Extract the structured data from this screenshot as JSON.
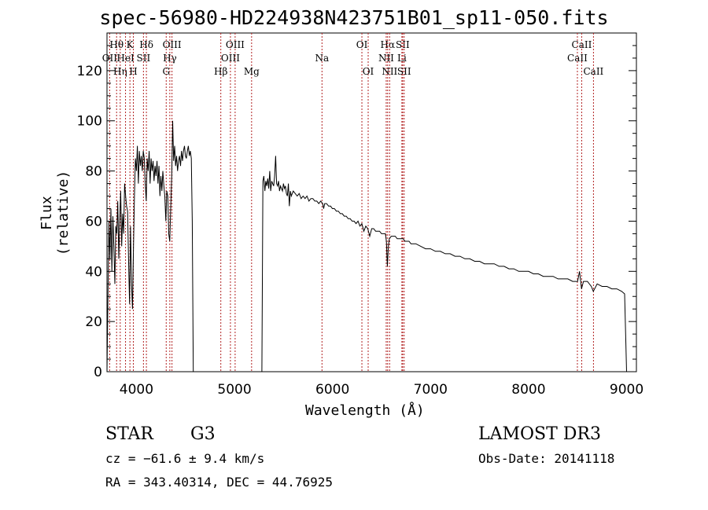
{
  "title": "spec-56980-HD224938N423751B01_sp11-050.fits",
  "info": {
    "class": "STAR",
    "subclass": "G3",
    "survey": "LAMOST DR3",
    "cz": "cz = −61.6 ± 9.4 km/s",
    "obs_date": "Obs-Date: 20141118",
    "coords": "RA = 343.40314, DEC =  44.76925"
  },
  "colors": {
    "spectrum": "#000000",
    "lines": "#b22222",
    "axis": "#000000"
  },
  "chart_data": {
    "type": "line",
    "title": "spec-56980-HD224938N423751B01_sp11-050.fits",
    "xlabel": "Wavelength (Å)",
    "ylabel": "Flux (relative)",
    "xlim": [
      3700,
      9100
    ],
    "ylim": [
      0,
      135
    ],
    "xticks": [
      4000,
      5000,
      6000,
      7000,
      8000,
      9000
    ],
    "yticks": [
      0,
      20,
      40,
      60,
      80,
      100,
      120
    ],
    "spectrum": {
      "name": "flux",
      "segments": [
        [
          [
            3700,
            0
          ],
          [
            3710,
            30
          ],
          [
            3720,
            60
          ],
          [
            3730,
            45
          ],
          [
            3740,
            65
          ],
          [
            3750,
            40
          ],
          [
            3760,
            62
          ],
          [
            3770,
            50
          ],
          [
            3780,
            35
          ],
          [
            3790,
            58
          ],
          [
            3800,
            55
          ],
          [
            3810,
            68
          ],
          [
            3820,
            45
          ],
          [
            3830,
            60
          ],
          [
            3840,
            72
          ],
          [
            3850,
            50
          ],
          [
            3860,
            63
          ],
          [
            3870,
            55
          ],
          [
            3880,
            75
          ],
          [
            3890,
            70
          ],
          [
            3900,
            66
          ],
          [
            3910,
            64
          ],
          [
            3920,
            45
          ],
          [
            3930,
            27
          ],
          [
            3940,
            58
          ],
          [
            3950,
            35
          ],
          [
            3960,
            25
          ],
          [
            3970,
            50
          ],
          [
            3980,
            70
          ],
          [
            3990,
            85
          ],
          [
            4000,
            80
          ],
          [
            4010,
            90
          ],
          [
            4020,
            75
          ],
          [
            4030,
            88
          ],
          [
            4040,
            82
          ],
          [
            4050,
            86
          ],
          [
            4060,
            80
          ],
          [
            4070,
            88
          ],
          [
            4080,
            85
          ],
          [
            4090,
            75
          ],
          [
            4100,
            68
          ],
          [
            4110,
            85
          ],
          [
            4120,
            80
          ],
          [
            4130,
            88
          ],
          [
            4140,
            75
          ],
          [
            4150,
            85
          ],
          [
            4160,
            80
          ],
          [
            4170,
            84
          ],
          [
            4180,
            76
          ],
          [
            4190,
            82
          ],
          [
            4200,
            78
          ],
          [
            4210,
            84
          ],
          [
            4220,
            75
          ],
          [
            4230,
            82
          ],
          [
            4240,
            70
          ],
          [
            4250,
            78
          ],
          [
            4260,
            72
          ],
          [
            4270,
            80
          ],
          [
            4280,
            74
          ],
          [
            4290,
            70
          ],
          [
            4300,
            60
          ],
          [
            4310,
            72
          ],
          [
            4320,
            70
          ],
          [
            4330,
            55
          ],
          [
            4340,
            52
          ],
          [
            4350,
            65
          ],
          [
            4360,
            78
          ],
          [
            4370,
            100
          ],
          [
            4380,
            84
          ],
          [
            4390,
            90
          ],
          [
            4400,
            82
          ],
          [
            4410,
            86
          ],
          [
            4420,
            80
          ],
          [
            4430,
            84
          ],
          [
            4440,
            86
          ],
          [
            4450,
            82
          ],
          [
            4460,
            88
          ],
          [
            4470,
            84
          ],
          [
            4480,
            88
          ],
          [
            4490,
            90
          ],
          [
            4500,
            86
          ],
          [
            4510,
            85
          ],
          [
            4520,
            88
          ],
          [
            4530,
            90
          ],
          [
            4540,
            86
          ],
          [
            4550,
            88
          ],
          [
            4560,
            85
          ],
          [
            4570,
            60
          ],
          [
            4580,
            0
          ]
        ],
        [
          [
            5270,
            0
          ],
          [
            5280,
            0
          ],
          [
            5290,
            76
          ],
          [
            5300,
            78
          ],
          [
            5310,
            72
          ],
          [
            5320,
            76
          ],
          [
            5330,
            74
          ],
          [
            5340,
            77
          ],
          [
            5350,
            73
          ],
          [
            5360,
            80
          ],
          [
            5370,
            72
          ],
          [
            5380,
            76
          ],
          [
            5390,
            75
          ],
          [
            5400,
            74
          ],
          [
            5410,
            78
          ],
          [
            5420,
            86
          ],
          [
            5430,
            75
          ],
          [
            5440,
            74
          ],
          [
            5450,
            76
          ],
          [
            5460,
            72
          ],
          [
            5470,
            74
          ],
          [
            5480,
            73
          ],
          [
            5490,
            72
          ],
          [
            5500,
            75
          ],
          [
            5510,
            73
          ],
          [
            5520,
            74
          ],
          [
            5530,
            71
          ],
          [
            5540,
            70
          ],
          [
            5550,
            75
          ],
          [
            5560,
            66
          ],
          [
            5570,
            72
          ],
          [
            5580,
            70
          ],
          [
            5590,
            71
          ],
          [
            5600,
            72
          ],
          [
            5620,
            71
          ],
          [
            5640,
            70
          ],
          [
            5660,
            71
          ],
          [
            5680,
            69
          ],
          [
            5700,
            70
          ],
          [
            5720,
            69
          ],
          [
            5740,
            70
          ],
          [
            5760,
            68
          ],
          [
            5780,
            69
          ],
          [
            5800,
            69
          ],
          [
            5820,
            68
          ],
          [
            5840,
            68
          ],
          [
            5860,
            67
          ],
          [
            5880,
            68
          ],
          [
            5900,
            67
          ],
          [
            5910,
            65
          ],
          [
            5920,
            67
          ],
          [
            5940,
            67
          ],
          [
            5960,
            66
          ],
          [
            5980,
            66
          ],
          [
            6000,
            65
          ],
          [
            6020,
            65
          ],
          [
            6040,
            64
          ],
          [
            6060,
            64
          ],
          [
            6080,
            63
          ],
          [
            6100,
            63
          ],
          [
            6120,
            62
          ],
          [
            6140,
            62
          ],
          [
            6160,
            61
          ],
          [
            6180,
            61
          ],
          [
            6200,
            60
          ],
          [
            6220,
            60
          ],
          [
            6240,
            59
          ],
          [
            6260,
            60
          ],
          [
            6280,
            58
          ],
          [
            6300,
            59
          ],
          [
            6320,
            56
          ],
          [
            6340,
            58
          ],
          [
            6360,
            57
          ],
          [
            6380,
            54
          ],
          [
            6400,
            57
          ],
          [
            6420,
            57
          ],
          [
            6440,
            56
          ],
          [
            6460,
            56
          ],
          [
            6480,
            56
          ],
          [
            6500,
            55
          ],
          [
            6520,
            55
          ],
          [
            6540,
            55
          ],
          [
            6550,
            52
          ],
          [
            6560,
            42
          ],
          [
            6570,
            50
          ],
          [
            6580,
            53
          ],
          [
            6600,
            54
          ],
          [
            6620,
            54
          ],
          [
            6640,
            54
          ],
          [
            6660,
            53
          ],
          [
            6680,
            53
          ],
          [
            6700,
            53
          ],
          [
            6720,
            53
          ],
          [
            6740,
            52
          ],
          [
            6760,
            52
          ],
          [
            6780,
            52
          ],
          [
            6800,
            51
          ],
          [
            6850,
            51
          ],
          [
            6900,
            50
          ],
          [
            6950,
            49
          ],
          [
            7000,
            49
          ],
          [
            7050,
            48
          ],
          [
            7100,
            48
          ],
          [
            7150,
            47
          ],
          [
            7200,
            47
          ],
          [
            7250,
            46
          ],
          [
            7300,
            46
          ],
          [
            7350,
            45
          ],
          [
            7400,
            45
          ],
          [
            7450,
            44
          ],
          [
            7500,
            44
          ],
          [
            7550,
            43
          ],
          [
            7600,
            43
          ],
          [
            7650,
            43
          ],
          [
            7700,
            42
          ],
          [
            7750,
            42
          ],
          [
            7800,
            41
          ],
          [
            7850,
            41
          ],
          [
            7900,
            40
          ],
          [
            7950,
            40
          ],
          [
            8000,
            40
          ],
          [
            8050,
            39
          ],
          [
            8100,
            39
          ],
          [
            8150,
            38
          ],
          [
            8200,
            38
          ],
          [
            8250,
            38
          ],
          [
            8300,
            37
          ],
          [
            8350,
            37
          ],
          [
            8400,
            37
          ],
          [
            8450,
            36
          ],
          [
            8500,
            36
          ],
          [
            8520,
            40
          ],
          [
            8540,
            33
          ],
          [
            8560,
            36
          ],
          [
            8600,
            36
          ],
          [
            8640,
            34
          ],
          [
            8660,
            32
          ],
          [
            8700,
            35
          ],
          [
            8750,
            34
          ],
          [
            8800,
            34
          ],
          [
            8850,
            33
          ],
          [
            8900,
            33
          ],
          [
            8950,
            32
          ],
          [
            8980,
            31
          ],
          [
            8990,
            15
          ],
          [
            9000,
            0
          ]
        ]
      ]
    },
    "lines": [
      {
        "label": "Hθ",
        "wave": 3798,
        "row": 0
      },
      {
        "label": "OII",
        "wave": 3727,
        "row": 1
      },
      {
        "label": "Hη",
        "wave": 3835,
        "row": 2
      },
      {
        "label": "K",
        "wave": 3934,
        "row": 0
      },
      {
        "label": "HeI",
        "wave": 3889,
        "row": 1
      },
      {
        "label": "H",
        "wave": 3969,
        "row": 2
      },
      {
        "label": "Hδ",
        "wave": 4102,
        "row": 0
      },
      {
        "label": "SII",
        "wave": 4072,
        "row": 1
      },
      {
        "label": "OIII",
        "wave": 4363,
        "row": 0
      },
      {
        "label": "Hγ",
        "wave": 4341,
        "row": 1
      },
      {
        "label": "G",
        "wave": 4304,
        "row": 2
      },
      {
        "label": "OIII",
        "wave": 5007,
        "row": 0
      },
      {
        "label": "OIII",
        "wave": 4959,
        "row": 1
      },
      {
        "label": "Hβ",
        "wave": 4861,
        "row": 2
      },
      {
        "label": "Mg",
        "wave": 5175,
        "row": 2
      },
      {
        "label": "Na",
        "wave": 5893,
        "row": 1
      },
      {
        "label": "OI",
        "wave": 6300,
        "row": 0
      },
      {
        "label": "OI",
        "wave": 6364,
        "row": 2
      },
      {
        "label": "Hα",
        "wave": 6563,
        "row": 0
      },
      {
        "label": "NII",
        "wave": 6548,
        "row": 1
      },
      {
        "label": "NII",
        "wave": 6583,
        "row": 2
      },
      {
        "label": "SII",
        "wave": 6716,
        "row": 0
      },
      {
        "label": "Li",
        "wave": 6708,
        "row": 1
      },
      {
        "label": "SII",
        "wave": 6731,
        "row": 2
      },
      {
        "label": "CaII",
        "wave": 8542,
        "row": 0
      },
      {
        "label": "CaII",
        "wave": 8498,
        "row": 1
      },
      {
        "label": "CaII",
        "wave": 8662,
        "row": 2
      }
    ]
  }
}
